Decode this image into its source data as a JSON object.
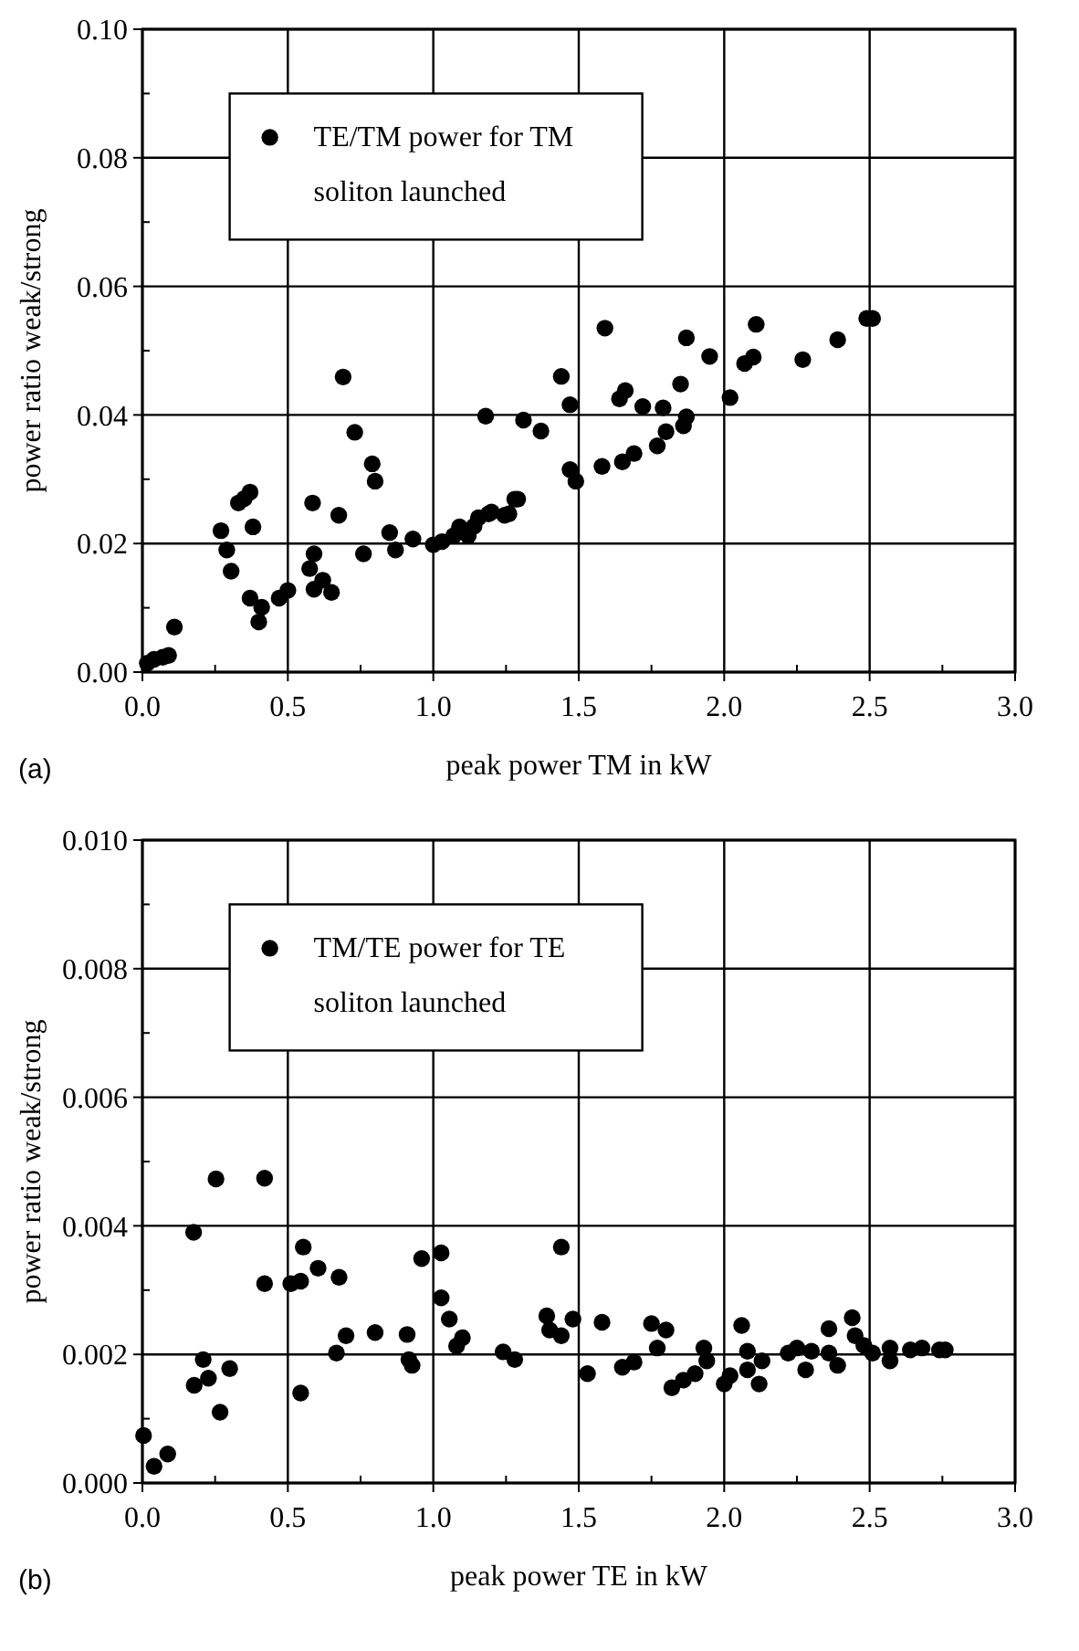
{
  "chart_data": [
    {
      "type": "scatter",
      "xlabel": "peak power TM in kW",
      "ylabel": "power ratio weak/strong",
      "annotations": [
        "(a)"
      ],
      "legend": "top left",
      "grid": true,
      "marker": "circle",
      "xlim": [
        0,
        3
      ],
      "xticks": [
        {
          "value": 0,
          "label": "0.0"
        },
        {
          "value": 0.5,
          "label": "0.5"
        },
        {
          "value": 1,
          "label": "1.0"
        },
        {
          "value": 1.5,
          "label": "1.5"
        },
        {
          "value": 2,
          "label": "2.0"
        },
        {
          "value": 2.5,
          "label": "2.5"
        },
        {
          "value": 3,
          "label": "3.0"
        }
      ],
      "ylim": [
        0,
        0.1
      ],
      "yticks": [
        {
          "value": 0,
          "label": "0.00"
        },
        {
          "value": 0.02,
          "label": "0.02"
        },
        {
          "value": 0.04,
          "label": "0.04"
        },
        {
          "value": 0.06,
          "label": "0.06"
        },
        {
          "value": 0.08,
          "label": "0.08"
        },
        {
          "value": 0.1,
          "label": "0.10"
        }
      ],
      "series": [
        {
          "name": "TE/TM power for TM soliton launched",
          "color": "#000000",
          "x": [
            0.017,
            0.04,
            0.07,
            0.09,
            0.11,
            0.27,
            0.29,
            0.305,
            0.33,
            0.35,
            0.37,
            0.38,
            0.37,
            0.4,
            0.41,
            0.47,
            0.5,
            0.585,
            0.59,
            0.575,
            0.59,
            0.62,
            0.65,
            0.675,
            0.69,
            0.73,
            0.79,
            0.8,
            0.76,
            0.85,
            0.87,
            0.93,
            1.0,
            1.03,
            1.07,
            1.09,
            1.12,
            1.14,
            1.155,
            1.18,
            1.19,
            1.2,
            1.245,
            1.26,
            1.28,
            1.29,
            1.31,
            1.37,
            1.44,
            1.47,
            1.47,
            1.49,
            1.59,
            1.58,
            1.64,
            1.66,
            1.65,
            1.69,
            1.72,
            1.77,
            1.79,
            1.8,
            1.85,
            1.87,
            1.86,
            1.87,
            1.95,
            2.02,
            2.07,
            2.1,
            2.11,
            2.27,
            2.39,
            2.49,
            2.51
          ],
          "values": [
            0.0014,
            0.002,
            0.0023,
            0.0026,
            0.007,
            0.022,
            0.019,
            0.0157,
            0.0263,
            0.027,
            0.028,
            0.0226,
            0.0115,
            0.0078,
            0.0101,
            0.0115,
            0.0127,
            0.0263,
            0.0184,
            0.0161,
            0.0129,
            0.0143,
            0.0124,
            0.0244,
            0.0459,
            0.0373,
            0.0324,
            0.0297,
            0.0184,
            0.0217,
            0.019,
            0.0207,
            0.0198,
            0.0203,
            0.0212,
            0.0226,
            0.0212,
            0.0227,
            0.024,
            0.0398,
            0.0246,
            0.0249,
            0.0244,
            0.0246,
            0.0269,
            0.0269,
            0.0392,
            0.0375,
            0.046,
            0.0416,
            0.0315,
            0.0297,
            0.0535,
            0.032,
            0.0425,
            0.0438,
            0.0327,
            0.034,
            0.0413,
            0.0352,
            0.0411,
            0.0374,
            0.0448,
            0.052,
            0.0383,
            0.0397,
            0.0491,
            0.0427,
            0.048,
            0.049,
            0.0541,
            0.0486,
            0.0517,
            0.055,
            0.055
          ]
        }
      ]
    },
    {
      "type": "scatter",
      "xlabel": "peak power TE in kW",
      "ylabel": "power ratio weak/strong",
      "annotations": [
        "(b)"
      ],
      "legend": "top left",
      "grid": true,
      "marker": "circle",
      "xlim": [
        0,
        3
      ],
      "xticks": [
        {
          "value": 0,
          "label": "0.0"
        },
        {
          "value": 0.5,
          "label": "0.5"
        },
        {
          "value": 1,
          "label": "1.0"
        },
        {
          "value": 1.5,
          "label": "1.5"
        },
        {
          "value": 2,
          "label": "2.0"
        },
        {
          "value": 2.5,
          "label": "2.5"
        },
        {
          "value": 3,
          "label": "3.0"
        }
      ],
      "ylim": [
        0,
        0.01
      ],
      "yticks": [
        {
          "value": 0,
          "label": "0.000"
        },
        {
          "value": 0.002,
          "label": "0.002"
        },
        {
          "value": 0.004,
          "label": "0.004"
        },
        {
          "value": 0.006,
          "label": "0.006"
        },
        {
          "value": 0.008,
          "label": "0.008"
        },
        {
          "value": 0.01,
          "label": "0.010"
        }
      ],
      "series": [
        {
          "name": "TM/TE power for TE soliton launched",
          "color": "#000000",
          "x": [
            0.004,
            0.04,
            0.087,
            0.176,
            0.178,
            0.209,
            0.227,
            0.253,
            0.267,
            0.3,
            0.42,
            0.42,
            0.51,
            0.544,
            0.553,
            0.544,
            0.604,
            0.676,
            0.667,
            0.7,
            0.8,
            0.91,
            0.916,
            0.927,
            0.96,
            1.027,
            1.027,
            1.055,
            1.08,
            1.1,
            1.24,
            1.28,
            1.44,
            1.39,
            1.4,
            1.44,
            1.48,
            1.53,
            1.58,
            1.65,
            1.69,
            1.75,
            1.8,
            1.77,
            1.82,
            1.86,
            1.9,
            1.93,
            1.94,
            2.0,
            2.02,
            2.06,
            2.08,
            2.08,
            2.12,
            2.13,
            2.22,
            2.25,
            2.28,
            2.3,
            2.36,
            2.36,
            2.39,
            2.44,
            2.45,
            2.48,
            2.51,
            2.57,
            2.57,
            2.64,
            2.68,
            2.74,
            2.76
          ],
          "values": [
            0.00074,
            0.00026,
            0.00045,
            0.0039,
            0.00152,
            0.00192,
            0.00163,
            0.00473,
            0.0011,
            0.00178,
            0.00474,
            0.0031,
            0.0031,
            0.00314,
            0.00367,
            0.0014,
            0.00334,
            0.0032,
            0.00202,
            0.00229,
            0.00234,
            0.00231,
            0.00192,
            0.00183,
            0.00349,
            0.00358,
            0.00288,
            0.00255,
            0.00213,
            0.00226,
            0.00204,
            0.00192,
            0.00367,
            0.0026,
            0.00238,
            0.00229,
            0.00255,
            0.0017,
            0.0025,
            0.0018,
            0.00188,
            0.00248,
            0.00238,
            0.0021,
            0.00148,
            0.0016,
            0.0017,
            0.0021,
            0.0019,
            0.00154,
            0.00167,
            0.00245,
            0.00205,
            0.00176,
            0.00154,
            0.0019,
            0.00202,
            0.0021,
            0.00176,
            0.00205,
            0.0024,
            0.00202,
            0.00183,
            0.00257,
            0.00229,
            0.00214,
            0.00202,
            0.0021,
            0.0019,
            0.00207,
            0.0021,
            0.00207,
            0.00207
          ]
        }
      ]
    }
  ]
}
